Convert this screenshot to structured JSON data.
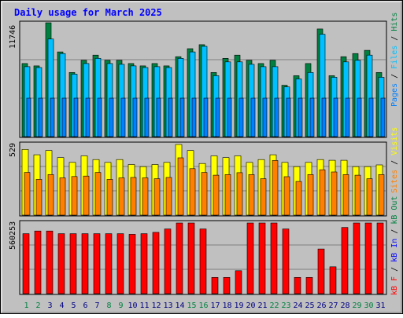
{
  "title": "Daily usage for March 2025",
  "colors": {
    "background": "#c0c0c0",
    "title": "#0000ff",
    "hits": "#008040",
    "files": "#00c0ff",
    "pages": "#0080ff",
    "visits": "#ffff00",
    "sites": "#ff8000",
    "kbout": "#008040",
    "kbin": "#0000ff",
    "kbf": "#ff0000",
    "weekend_day": "#008040",
    "weekday": "#000080"
  },
  "legend": {
    "top": [
      "Pages",
      "Files",
      "Hits"
    ],
    "middle": [
      "Visits",
      "Sites"
    ],
    "bottom": [
      "kB F",
      "kB In",
      "kB Out"
    ]
  },
  "chart_data": [
    {
      "type": "bar",
      "panel": "top",
      "title": "Daily usage for March 2025",
      "max_label": "11746",
      "ylim": [
        0,
        11746
      ],
      "categories": [
        "1",
        "2",
        "3",
        "4",
        "5",
        "6",
        "7",
        "8",
        "9",
        "10",
        "11",
        "12",
        "13",
        "14",
        "15",
        "16",
        "17",
        "18",
        "19",
        "20",
        "21",
        "22",
        "23",
        "24",
        "25",
        "26",
        "27",
        "28",
        "29",
        "30",
        "31"
      ],
      "weekend_days": [
        "1",
        "2",
        "8",
        "9",
        "15",
        "16",
        "22",
        "23",
        "29",
        "30"
      ],
      "series": [
        {
          "name": "Hits",
          "values": [
            7545,
            7297,
            11746,
            8741,
            6617,
            7876,
            8408,
            7876,
            7876,
            7545,
            7297,
            7545,
            7297,
            8243,
            9070,
            9483,
            6617,
            8078,
            8408,
            7876,
            7545,
            7876,
            5296,
            6286,
            7545,
            11103,
            6286,
            8243,
            8571,
            8905,
            6617
          ]
        },
        {
          "name": "Files",
          "values": [
            7214,
            7131,
            10069,
            8571,
            6451,
            7545,
            8078,
            7545,
            7462,
            7297,
            7131,
            7214,
            7131,
            8078,
            8741,
            9318,
            6286,
            7710,
            7710,
            7462,
            7214,
            7214,
            5131,
            5956,
            6617,
            10566,
            6121,
            7710,
            7876,
            8408,
            6121
          ]
        },
        {
          "name": "Pages",
          "values": [
            3966,
            3966,
            3966,
            3966,
            3966,
            3966,
            3966,
            3966,
            3966,
            3966,
            3966,
            3966,
            3966,
            3966,
            3966,
            3966,
            3966,
            3966,
            3966,
            3966,
            3966,
            3966,
            3966,
            3966,
            3966,
            3966,
            3966,
            3966,
            3966,
            3966,
            3966
          ]
        }
      ]
    },
    {
      "type": "bar",
      "panel": "middle",
      "max_label": "529",
      "ylim": [
        0,
        529
      ],
      "categories": [
        "1",
        "2",
        "3",
        "4",
        "5",
        "6",
        "7",
        "8",
        "9",
        "10",
        "11",
        "12",
        "13",
        "14",
        "15",
        "16",
        "17",
        "18",
        "19",
        "20",
        "21",
        "22",
        "23",
        "24",
        "25",
        "26",
        "27",
        "28",
        "29",
        "30",
        "31"
      ],
      "series": [
        {
          "name": "Visits",
          "values": [
            492,
            452,
            484,
            431,
            395,
            444,
            416,
            395,
            416,
            379,
            363,
            379,
            395,
            529,
            484,
            387,
            444,
            431,
            444,
            395,
            416,
            452,
            395,
            363,
            395,
            416,
            411,
            411,
            363,
            363,
            376
          ]
        },
        {
          "name": "Sites",
          "values": [
            320,
            268,
            304,
            279,
            289,
            293,
            320,
            268,
            279,
            282,
            279,
            273,
            282,
            429,
            348,
            320,
            299,
            304,
            318,
            304,
            273,
            409,
            288,
            252,
            304,
            340,
            323,
            304,
            299,
            273,
            304
          ]
        }
      ]
    },
    {
      "type": "bar",
      "panel": "bottom",
      "max_label": "560253",
      "ylim": [
        0,
        560253
      ],
      "categories": [
        "1",
        "2",
        "3",
        "4",
        "5",
        "6",
        "7",
        "8",
        "9",
        "10",
        "11",
        "12",
        "13",
        "14",
        "15",
        "16",
        "17",
        "18",
        "19",
        "20",
        "21",
        "22",
        "23",
        "24",
        "25",
        "26",
        "27",
        "28",
        "29",
        "30",
        "31"
      ],
      "series": [
        {
          "name": "kB F",
          "values": [
            475716,
            496857,
            496857,
            475716,
            475716,
            475716,
            475716,
            475716,
            475716,
            470434,
            475716,
            486286,
            512714,
            560253,
            560253,
            512714,
            128857,
            128857,
            181714,
            560253,
            560253,
            560253,
            512714,
            128857,
            128857,
            354214,
            212857,
            525000,
            560253,
            560253,
            560253
          ]
        },
        {
          "name": "kB In",
          "values": [
            0,
            0,
            0,
            0,
            0,
            0,
            0,
            0,
            0,
            0,
            0,
            0,
            0,
            0,
            0,
            0,
            0,
            0,
            0,
            0,
            0,
            0,
            0,
            0,
            0,
            0,
            0,
            0,
            0,
            0,
            0
          ]
        },
        {
          "name": "kB Out",
          "values": [
            0,
            0,
            0,
            0,
            0,
            0,
            0,
            0,
            0,
            0,
            0,
            0,
            0,
            0,
            0,
            0,
            0,
            0,
            0,
            0,
            0,
            0,
            0,
            0,
            0,
            0,
            0,
            0,
            0,
            0,
            0
          ]
        }
      ]
    }
  ]
}
